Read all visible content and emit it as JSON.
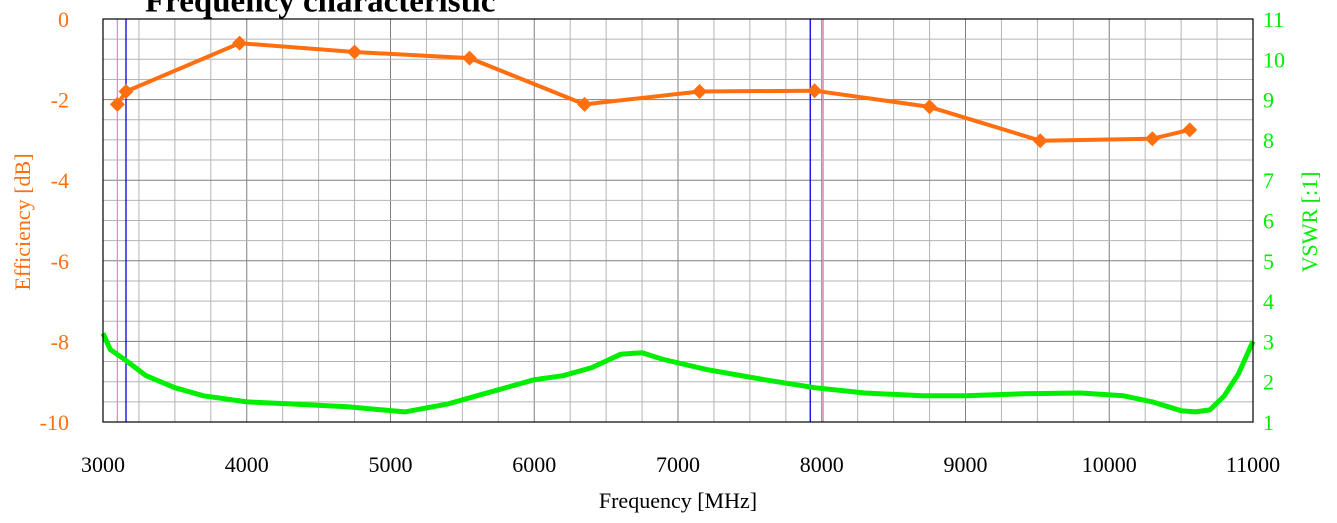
{
  "chart_data": {
    "type": "line",
    "title": "Frequency characteristic",
    "xlabel": "Frequency [MHz]",
    "ylabel_left": "Efficiency [dB]",
    "ylabel_right": "VSWR [:1]",
    "xlim": [
      3000,
      11000
    ],
    "ylim_left": [
      -10,
      0
    ],
    "ylim_right": [
      1,
      11
    ],
    "x_ticks": [
      "3000",
      "4000",
      "5000",
      "6000",
      "7000",
      "8000",
      "9000",
      "10000",
      "11000"
    ],
    "y_left_ticks": [
      "0",
      "-2",
      "-4",
      "-6",
      "-8",
      "-10"
    ],
    "y_right_ticks": [
      "11",
      "10",
      "9",
      "8",
      "7",
      "6",
      "5",
      "4",
      "3",
      "2",
      "1"
    ],
    "grid": true,
    "colors": {
      "efficiency": "#ff6f0f",
      "vswr": "#00ee00",
      "marker_line_blue": "#0000dd",
      "marker_line_pink": "#ff7fbf",
      "grid_minor": "#b4b4b4",
      "grid_major": "#7f7f7f"
    },
    "vertical_markers": [
      {
        "x": 3100,
        "color": "pink"
      },
      {
        "x": 3160,
        "color": "blue"
      },
      {
        "x": 7920,
        "color": "blue"
      },
      {
        "x": 8010,
        "color": "pink"
      }
    ],
    "series": [
      {
        "axis": "left",
        "marker": "diamond",
        "x": [
          3100,
          3160,
          3950,
          4750,
          5550,
          6350,
          7150,
          7950,
          8750,
          9520,
          10300,
          10560
        ],
        "y": [
          -2.12,
          -1.8,
          -0.6,
          -0.82,
          -0.97,
          -2.12,
          -1.8,
          -1.78,
          -2.18,
          -3.02,
          -2.97,
          -2.75
        ]
      },
      {
        "axis": "right",
        "marker": "none",
        "x": [
          3000,
          3050,
          3150,
          3300,
          3500,
          3700,
          4000,
          4300,
          4700,
          5100,
          5400,
          5700,
          6000,
          6200,
          6400,
          6600,
          6750,
          6900,
          7200,
          7600,
          7950,
          8300,
          8700,
          9000,
          9400,
          9800,
          10100,
          10300,
          10500,
          10600,
          10700,
          10800,
          10900,
          11000
        ],
        "y": [
          3.2,
          2.8,
          2.55,
          2.15,
          1.85,
          1.65,
          1.5,
          1.45,
          1.38,
          1.25,
          1.45,
          1.75,
          2.05,
          2.15,
          2.35,
          2.68,
          2.72,
          2.55,
          2.3,
          2.05,
          1.85,
          1.72,
          1.65,
          1.65,
          1.7,
          1.72,
          1.65,
          1.5,
          1.28,
          1.25,
          1.3,
          1.65,
          2.2,
          3.0
        ]
      }
    ]
  }
}
